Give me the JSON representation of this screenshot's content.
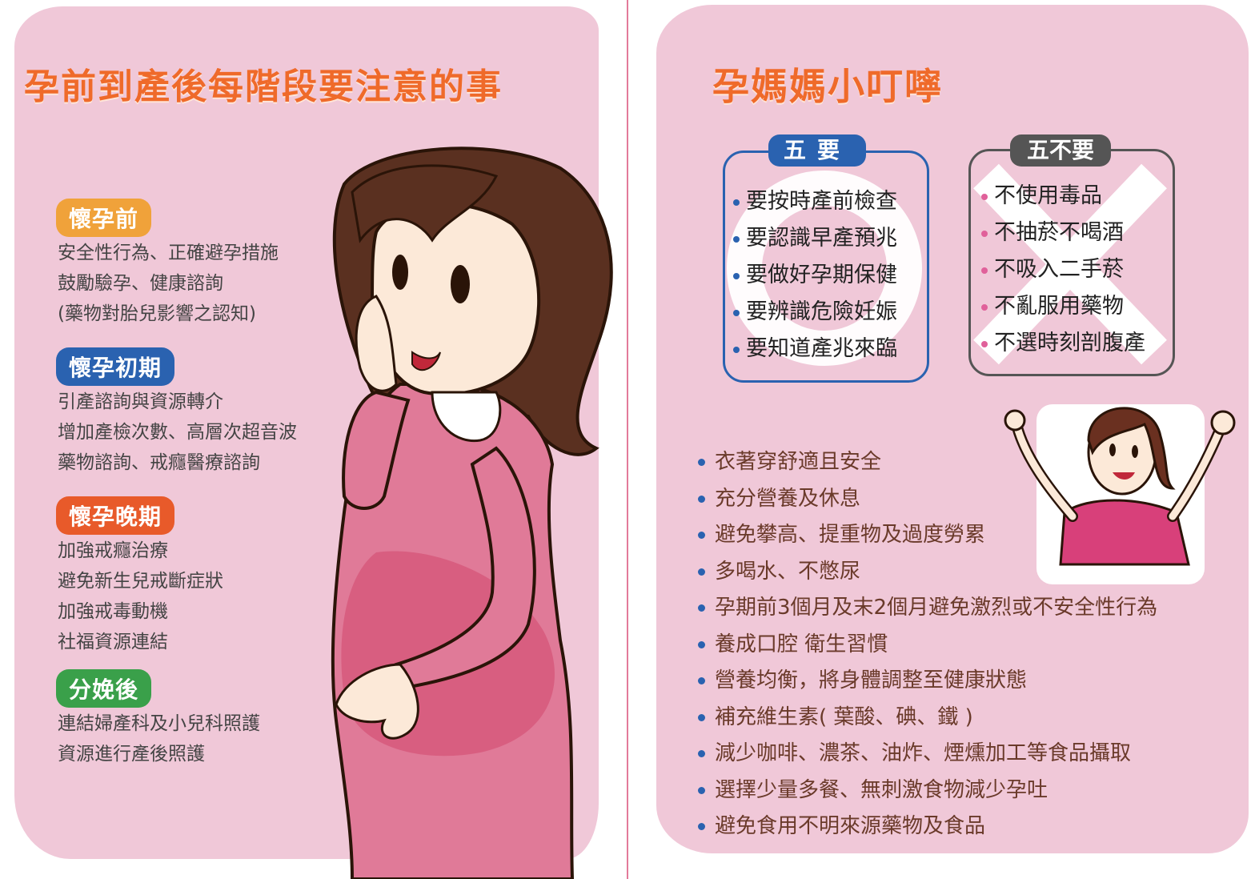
{
  "left": {
    "title": "孕前到產後每階段要注意的事",
    "stages": [
      {
        "label": "懷孕前",
        "color": "#f0a23a",
        "lines": [
          "安全性行為、正確避孕措施",
          "鼓勵驗孕、健康諮詢",
          "(藥物對胎兒影響之認知)"
        ]
      },
      {
        "label": "懷孕初期",
        "color": "#2a62b0",
        "lines": [
          "引產諮詢與資源轉介",
          "增加產檢次數、高層次超音波",
          "藥物諮詢、戒癮醫療諮詢"
        ]
      },
      {
        "label": "懷孕晚期",
        "color": "#e85a2a",
        "lines": [
          "加強戒癮治療",
          "避免新生兒戒斷症狀",
          "加強戒毒動機",
          "社福資源連結"
        ]
      },
      {
        "label": "分娩後",
        "color": "#3aa04a",
        "lines": [
          "連結婦產科及小兒科照護",
          "資源進行產後照護"
        ]
      }
    ]
  },
  "right": {
    "title": "孕媽媽小叮嚀",
    "five_do": {
      "label": "五要",
      "items": [
        "要按時產前檢查",
        "要認識早產預兆",
        "要做好孕期保健",
        "要辨識危險妊娠",
        "要知道產兆來臨"
      ]
    },
    "five_dont": {
      "label": "五不要",
      "items": [
        "不使用毒品",
        "不抽菸不喝酒",
        "不吸入二手菸",
        "不亂服用藥物",
        "不選時刻剖腹產"
      ]
    },
    "tips": [
      "衣著穿舒適且安全",
      "充分營養及休息",
      "避免攀高、提重物及過度勞累",
      "多喝水、不憋尿",
      "孕期前3個月及末2個月避免激烈或不安全性行為",
      "養成口腔 衛生習慣",
      "營養均衡，將身體調整至健康狀態",
      "補充維生素( 葉酸、碘、鐵 )",
      "減少咖啡、濃茶、油炸、煙燻加工等食品攝取",
      "選擇少量多餐、無刺激食物減少孕吐",
      "避免食用不明來源藥物及食品"
    ]
  },
  "colors": {
    "panel": "#f0c8d8",
    "title": "#ef6a2a",
    "do_blue": "#2a62b0",
    "dont_gray": "#555555",
    "dont_dot": "#e0609a"
  }
}
